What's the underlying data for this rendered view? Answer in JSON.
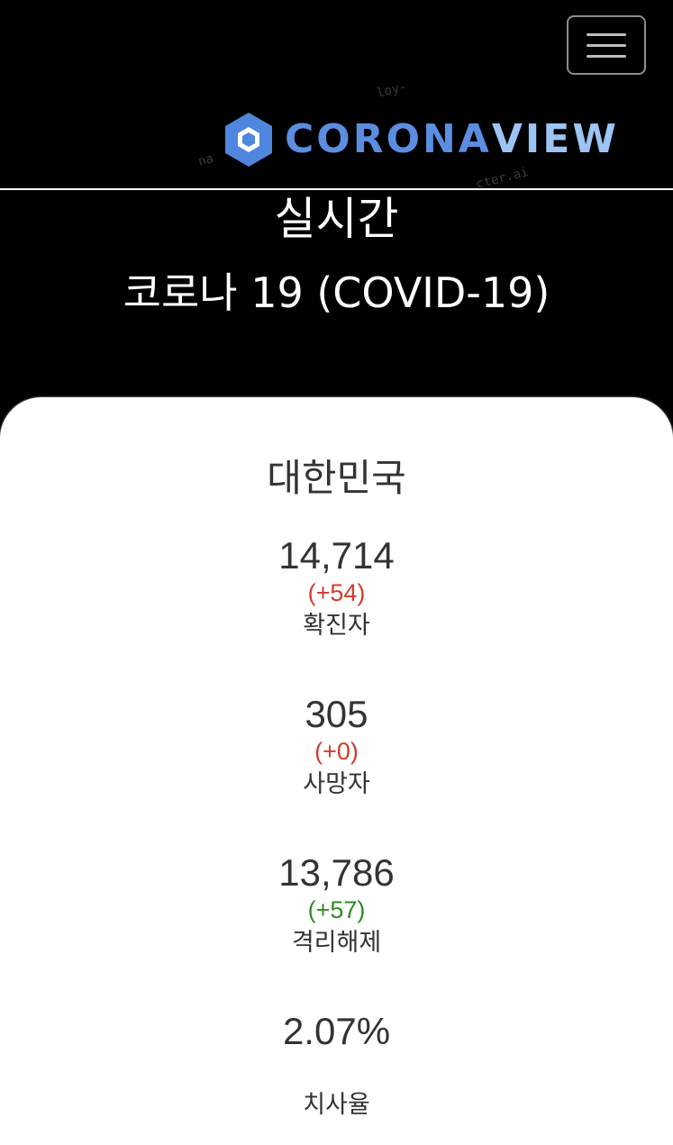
{
  "header": {
    "menu_icon": "hamburger-menu-icon",
    "logo_icon": "hexagon-logo-icon",
    "logo_text_part1": "CORONA",
    "logo_text_part2": "VIEW",
    "watermarks": [
      "loy-",
      "na",
      "cter.ai"
    ]
  },
  "hero": {
    "line1": "실시간",
    "line2": "코로나 19 (COVID-19)"
  },
  "card": {
    "country": "대한민국",
    "stats": [
      {
        "value": "14,714",
        "delta": "(+54)",
        "label": "확진자"
      },
      {
        "value": "305",
        "delta": "(+0)",
        "label": "사망자"
      },
      {
        "value": "13,786",
        "delta": "(+57)",
        "label": "격리해제"
      },
      {
        "value": "2.07%",
        "label": "치사율"
      }
    ]
  },
  "colors": {
    "background": "#000000",
    "card": "#ffffff",
    "logo_blue": "#5b8ee0",
    "delta_red": "#d23b2e",
    "delta_green": "#2f8a24",
    "text_dark": "#333333"
  }
}
